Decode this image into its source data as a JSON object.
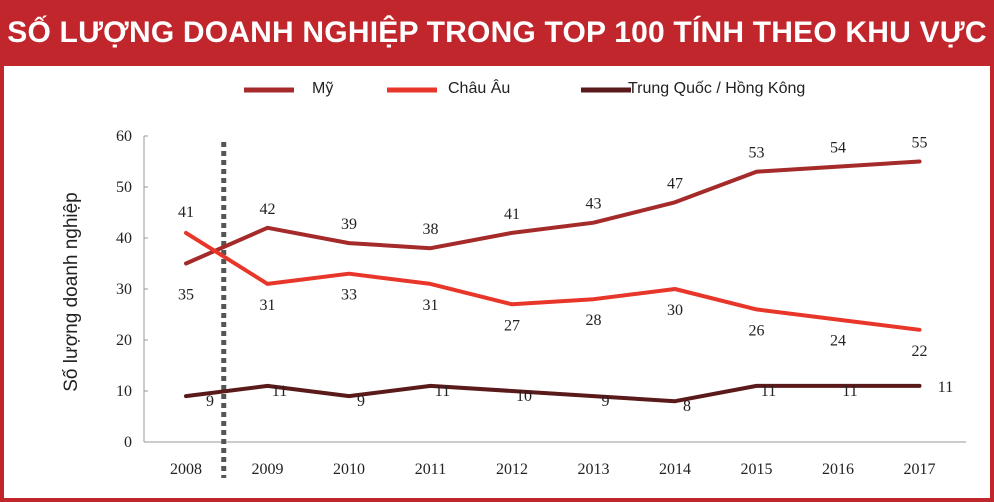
{
  "title": "SỐ LƯỢNG DOANH NGHIỆP TRONG TOP 100 TÍNH THEO KHU VỰC",
  "colors": {
    "frame": "#c1262c",
    "my": "#a52a2a",
    "chau_au": "#e8362a",
    "trung_quoc": "#5a1a1a",
    "divider": "#555555"
  },
  "chart_data": {
    "type": "line",
    "title": "SỐ LƯỢNG DOANH NGHIỆP TRONG TOP 100 TÍNH THEO KHU VỰC",
    "xlabel": "",
    "ylabel": "Số lượng doanh nghiệp",
    "x": [
      "2008",
      "2009",
      "2010",
      "2011",
      "2012",
      "2013",
      "2014",
      "2015",
      "2016",
      "2017"
    ],
    "ylim": [
      0,
      60
    ],
    "yticks": [
      0,
      10,
      20,
      30,
      40,
      50,
      60
    ],
    "grid": false,
    "legend_position": "top",
    "series": [
      {
        "name": "Mỹ",
        "color": "#a52a2a",
        "values": [
          35,
          42,
          39,
          38,
          41,
          43,
          47,
          53,
          54,
          55
        ]
      },
      {
        "name": "Châu Âu",
        "color": "#e8362a",
        "values": [
          41,
          31,
          33,
          31,
          27,
          28,
          30,
          26,
          24,
          22
        ]
      },
      {
        "name": "Trung Quốc / Hồng Kông",
        "color": "#5a1a1a",
        "values": [
          9,
          11,
          9,
          11,
          10,
          9,
          8,
          11,
          11,
          11
        ]
      }
    ]
  }
}
